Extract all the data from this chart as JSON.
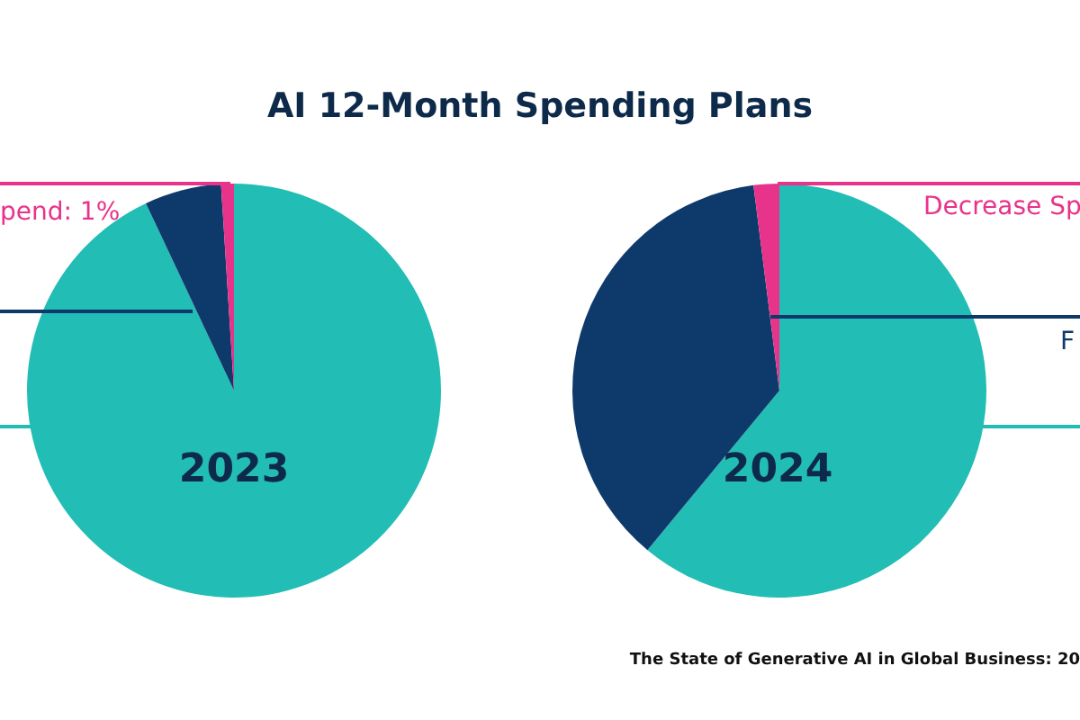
{
  "chart_data": [
    {
      "type": "pie",
      "title": "AI 12-Month Spending Plans",
      "subtitle": "2023",
      "categories": [
        null,
        null,
        null
      ],
      "values": [
        93,
        6,
        1
      ],
      "colors": [
        "#22bdb5",
        "#0e3a6b",
        "#e8338a"
      ],
      "legend": false,
      "annotations": [
        "pend: 1%"
      ]
    },
    {
      "type": "pie",
      "subtitle": "2024",
      "categories": [
        null,
        null,
        null
      ],
      "values": [
        61,
        37,
        2
      ],
      "colors": [
        "#22bdb5",
        "#0e3a6b",
        "#e8338a"
      ],
      "legend": false,
      "annotations": [
        "Decrease Sp",
        "F",
        "The State of Generative AI in Global Business: 20"
      ]
    }
  ]
}
